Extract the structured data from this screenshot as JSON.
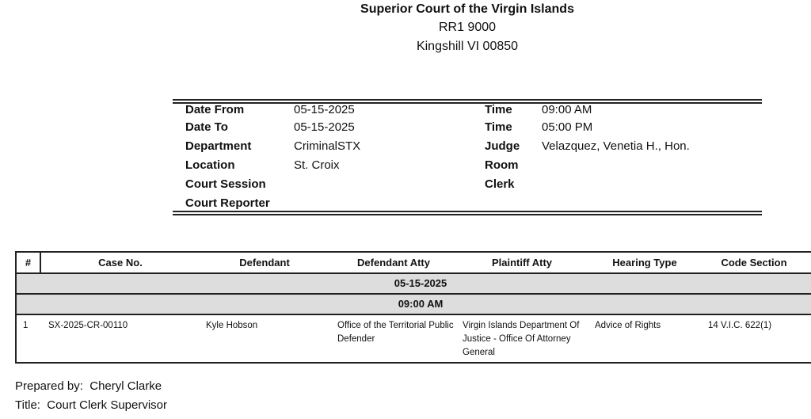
{
  "header": {
    "court": "Superior Court of the Virgin Islands",
    "address1": "RR1 9000",
    "address2": "Kingshill VI 00850"
  },
  "info": {
    "left": [
      {
        "label": "Date From",
        "value": "05-15-2025"
      },
      {
        "label": "Date To",
        "value": "05-15-2025"
      },
      {
        "label": "Department",
        "value": "CriminalSTX"
      },
      {
        "label": "Location",
        "value": "St. Croix"
      },
      {
        "label": "Court Session",
        "value": ""
      },
      {
        "label": "Court Reporter",
        "value": ""
      }
    ],
    "right": [
      {
        "label": "Time",
        "value": "09:00 AM"
      },
      {
        "label": "Time",
        "value": "05:00 PM"
      },
      {
        "label": "Judge",
        "value": "Velazquez, Venetia H., Hon."
      },
      {
        "label": "Room",
        "value": ""
      },
      {
        "label": "Clerk",
        "value": ""
      }
    ]
  },
  "table": {
    "columns": [
      "#",
      "Case No.",
      "Defendant",
      "Defendant Atty",
      "Plaintiff Atty",
      "Hearing Type",
      "Code Section"
    ],
    "date_group": "05-15-2025",
    "time_group": "09:00 AM",
    "rows": [
      [
        "1",
        "SX-2025-CR-00110",
        "Kyle Hobson",
        "Office of the Territorial Public Defender",
        "Virgin Islands Department Of Justice - Office Of Attorney General",
        "Advice of Rights",
        "14 V.I.C. 622(1)"
      ]
    ]
  },
  "footer": {
    "prepared_label": "Prepared by:",
    "prepared_by": "Cheryl Clarke",
    "title_label": "Title:",
    "title": "Court Clerk Supervisor"
  }
}
